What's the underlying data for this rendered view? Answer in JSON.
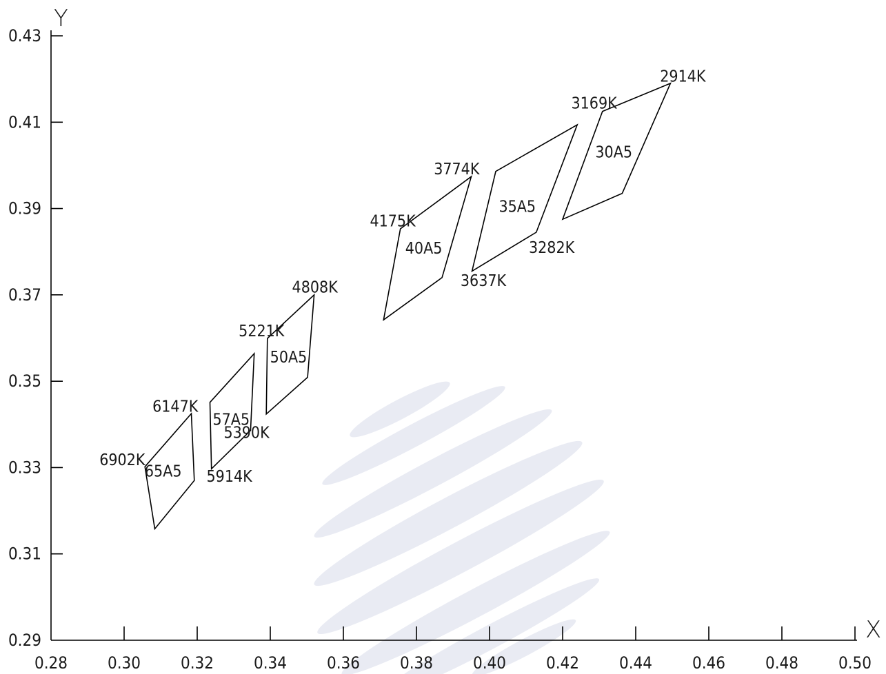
{
  "chart_data": {
    "type": "polygon",
    "xlabel": "X",
    "ylabel": "Y",
    "xlim": [
      0.28,
      0.5
    ],
    "ylim": [
      0.29,
      0.43
    ],
    "x_ticks": [
      "0.28",
      "0.30",
      "0.32",
      "0.34",
      "0.36",
      "0.38",
      "0.40",
      "0.42",
      "0.44",
      "0.46",
      "0.48",
      "0.50"
    ],
    "y_ticks": [
      "0.29",
      "0.31",
      "0.33",
      "0.35",
      "0.37",
      "0.39",
      "0.41",
      "0.43"
    ],
    "grid": false,
    "regions": [
      {
        "name": "65A5",
        "label_at": [
          0.3107,
          0.3292
        ],
        "points": [
          [
            0.3057,
            0.3302
          ],
          [
            0.3184,
            0.3425
          ],
          [
            0.3192,
            0.327
          ],
          [
            0.3084,
            0.3158
          ]
        ]
      },
      {
        "name": "57A5",
        "label_at": [
          0.3293,
          0.3412
        ],
        "points": [
          [
            0.3235,
            0.3451
          ],
          [
            0.3356,
            0.3564
          ],
          [
            0.3346,
            0.3386
          ],
          [
            0.3239,
            0.3297
          ]
        ]
      },
      {
        "name": "50A5",
        "label_at": [
          0.345,
          0.3556
        ],
        "points": [
          [
            0.3392,
            0.3599
          ],
          [
            0.352,
            0.37
          ],
          [
            0.3502,
            0.3509
          ],
          [
            0.3389,
            0.3424
          ]
        ]
      },
      {
        "name": "40A5",
        "label_at": [
          0.382,
          0.3808
        ],
        "points": [
          [
            0.3756,
            0.3853
          ],
          [
            0.395,
            0.3974
          ],
          [
            0.387,
            0.374
          ],
          [
            0.371,
            0.3642
          ]
        ]
      },
      {
        "name": "35A5",
        "label_at": [
          0.4076,
          0.3905
        ],
        "points": [
          [
            0.4017,
            0.3986
          ],
          [
            0.424,
            0.4094
          ],
          [
            0.4128,
            0.3845
          ],
          [
            0.3952,
            0.3755
          ]
        ]
      },
      {
        "name": "30A5",
        "label_at": [
          0.434,
          0.4031
        ],
        "points": [
          [
            0.4309,
            0.4125
          ],
          [
            0.4495,
            0.419
          ],
          [
            0.4363,
            0.3935
          ],
          [
            0.42,
            0.3875
          ]
        ]
      }
    ],
    "annotations": [
      {
        "text": "6902K",
        "x": 0.2995,
        "y": 0.3318
      },
      {
        "text": "6147K",
        "x": 0.314,
        "y": 0.3442
      },
      {
        "text": "5914K",
        "x": 0.3288,
        "y": 0.328
      },
      {
        "text": "5390K",
        "x": 0.3335,
        "y": 0.3381
      },
      {
        "text": "5221K",
        "x": 0.3376,
        "y": 0.3617
      },
      {
        "text": "4808K",
        "x": 0.3522,
        "y": 0.3718
      },
      {
        "text": "4175K",
        "x": 0.3735,
        "y": 0.3871
      },
      {
        "text": "3774K",
        "x": 0.391,
        "y": 0.3992
      },
      {
        "text": "3637K",
        "x": 0.3983,
        "y": 0.3733
      },
      {
        "text": "3282K",
        "x": 0.417,
        "y": 0.381
      },
      {
        "text": "3169K",
        "x": 0.4286,
        "y": 0.4144
      },
      {
        "text": "2914K",
        "x": 0.4529,
        "y": 0.4207
      }
    ]
  }
}
